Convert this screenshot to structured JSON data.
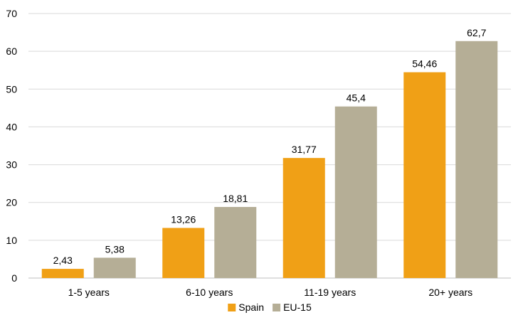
{
  "chart_data": {
    "type": "bar",
    "title": "",
    "xlabel": "",
    "ylabel": "",
    "categories": [
      "1-5 years",
      "6-10 years",
      "11-19 years",
      "20+ years"
    ],
    "series": [
      {
        "name": "Spain",
        "color": "#f0a016",
        "values": [
          2.43,
          13.26,
          31.77,
          54.46
        ],
        "labels": [
          "2,43",
          "13,26",
          "31,77",
          "54,46"
        ]
      },
      {
        "name": "EU-15",
        "color": "#b5ae96",
        "values": [
          5.38,
          18.81,
          45.4,
          62.7
        ],
        "labels": [
          "5,38",
          "18,81",
          "45,4",
          "62,7"
        ]
      }
    ],
    "ylim": [
      0,
      70
    ],
    "yticks": [
      0,
      10,
      20,
      30,
      40,
      50,
      60,
      70
    ],
    "grid": true,
    "legend_position": "bottom-center",
    "colors": {
      "gridline": "#d9d9d9",
      "axis": "#bfbfbf",
      "text": "#000000"
    }
  }
}
